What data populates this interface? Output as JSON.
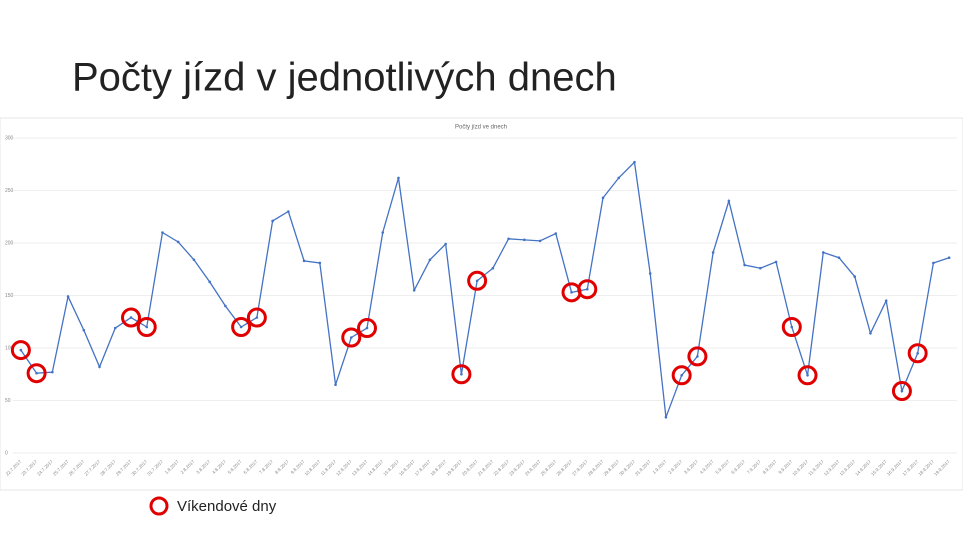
{
  "slide_title": "Počty jízd v jednotlivých dnech",
  "chart_data": {
    "type": "line",
    "title": "Počty jízd ve dnech",
    "categories": [
      "22.7.2017",
      "23.7.2017",
      "24.7.2017",
      "25.7.2017",
      "26.7.2017",
      "27.7.2017",
      "28.7.2017",
      "29.7.2017",
      "30.7.2017",
      "31.7.2017",
      "1.8.2017",
      "2.8.2017",
      "3.8.2017",
      "4.8.2017",
      "5.8.2017",
      "6.8.2017",
      "7.8.2017",
      "8.8.2017",
      "9.8.2017",
      "10.8.2017",
      "11.8.2017",
      "12.8.2017",
      "13.8.2017",
      "14.8.2017",
      "15.8.2017",
      "16.8.2017",
      "17.8.2017",
      "18.8.2017",
      "19.8.2017",
      "20.8.2017",
      "21.8.2017",
      "22.8.2017",
      "23.8.2017",
      "24.8.2017",
      "25.8.2017",
      "26.8.2017",
      "27.8.2017",
      "28.8.2017",
      "29.8.2017",
      "30.8.2017",
      "31.8.2017",
      "1.9.2017",
      "2.9.2017",
      "3.9.2017",
      "4.9.2017",
      "5.9.2017",
      "6.9.2017",
      "7.9.2017",
      "8.9.2017",
      "9.9.2017",
      "10.9.2017",
      "11.9.2017",
      "12.9.2017",
      "13.9.2017",
      "14.9.2017",
      "15.9.2017",
      "16.9.2017",
      "17.9.2017",
      "18.9.2017",
      "19.9.2017"
    ],
    "values": [
      98,
      76,
      77,
      149,
      117,
      82,
      119,
      129,
      120,
      210,
      201,
      184,
      163,
      140,
      120,
      129,
      221,
      230,
      183,
      181,
      65,
      110,
      119,
      210,
      262,
      155,
      184,
      199,
      75,
      164,
      176,
      204,
      203,
      202,
      209,
      153,
      156,
      243,
      262,
      277,
      171,
      34,
      74,
      92,
      191,
      240,
      179,
      176,
      182,
      120,
      74,
      191,
      186,
      168,
      114,
      145,
      59,
      95,
      181,
      186
    ],
    "color": "#4472c4",
    "ylim": [
      0,
      300
    ],
    "yticks": [
      0,
      50,
      100,
      150,
      200,
      250,
      300
    ],
    "grid": true,
    "highlight": [
      0,
      1,
      7,
      8,
      14,
      15,
      21,
      22,
      28,
      29,
      35,
      36,
      42,
      43,
      49,
      50,
      56,
      57
    ],
    "highlight_color": "#e00000",
    "highlight_label": "Víkendové dny"
  }
}
